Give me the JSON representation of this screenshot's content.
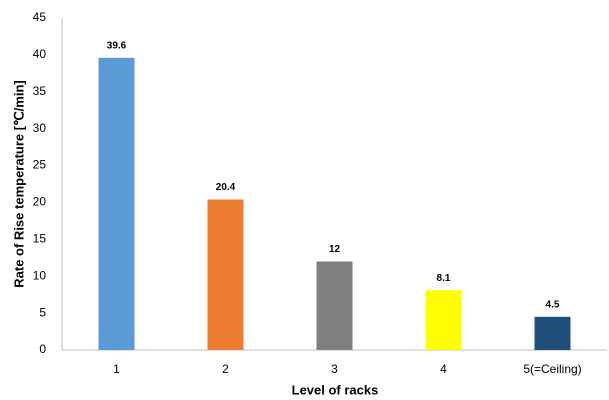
{
  "chart_data": {
    "type": "bar",
    "x_label": "Level of racks",
    "y_label": "Rate of Rise temperature [℃/min]",
    "categories": [
      "1",
      "2",
      "3",
      "4",
      "5(=Ceiling)"
    ],
    "values": [
      39.6,
      20.4,
      12,
      8.1,
      4.5
    ],
    "colors": [
      "#5b9bd5",
      "#ed7d31",
      "#7f7f7f",
      "#ffff00",
      "#1f4e79"
    ],
    "ylim": [
      0,
      45
    ],
    "yticks": [
      0,
      5,
      10,
      15,
      20,
      25,
      30,
      35,
      40,
      45
    ],
    "grid": false
  }
}
